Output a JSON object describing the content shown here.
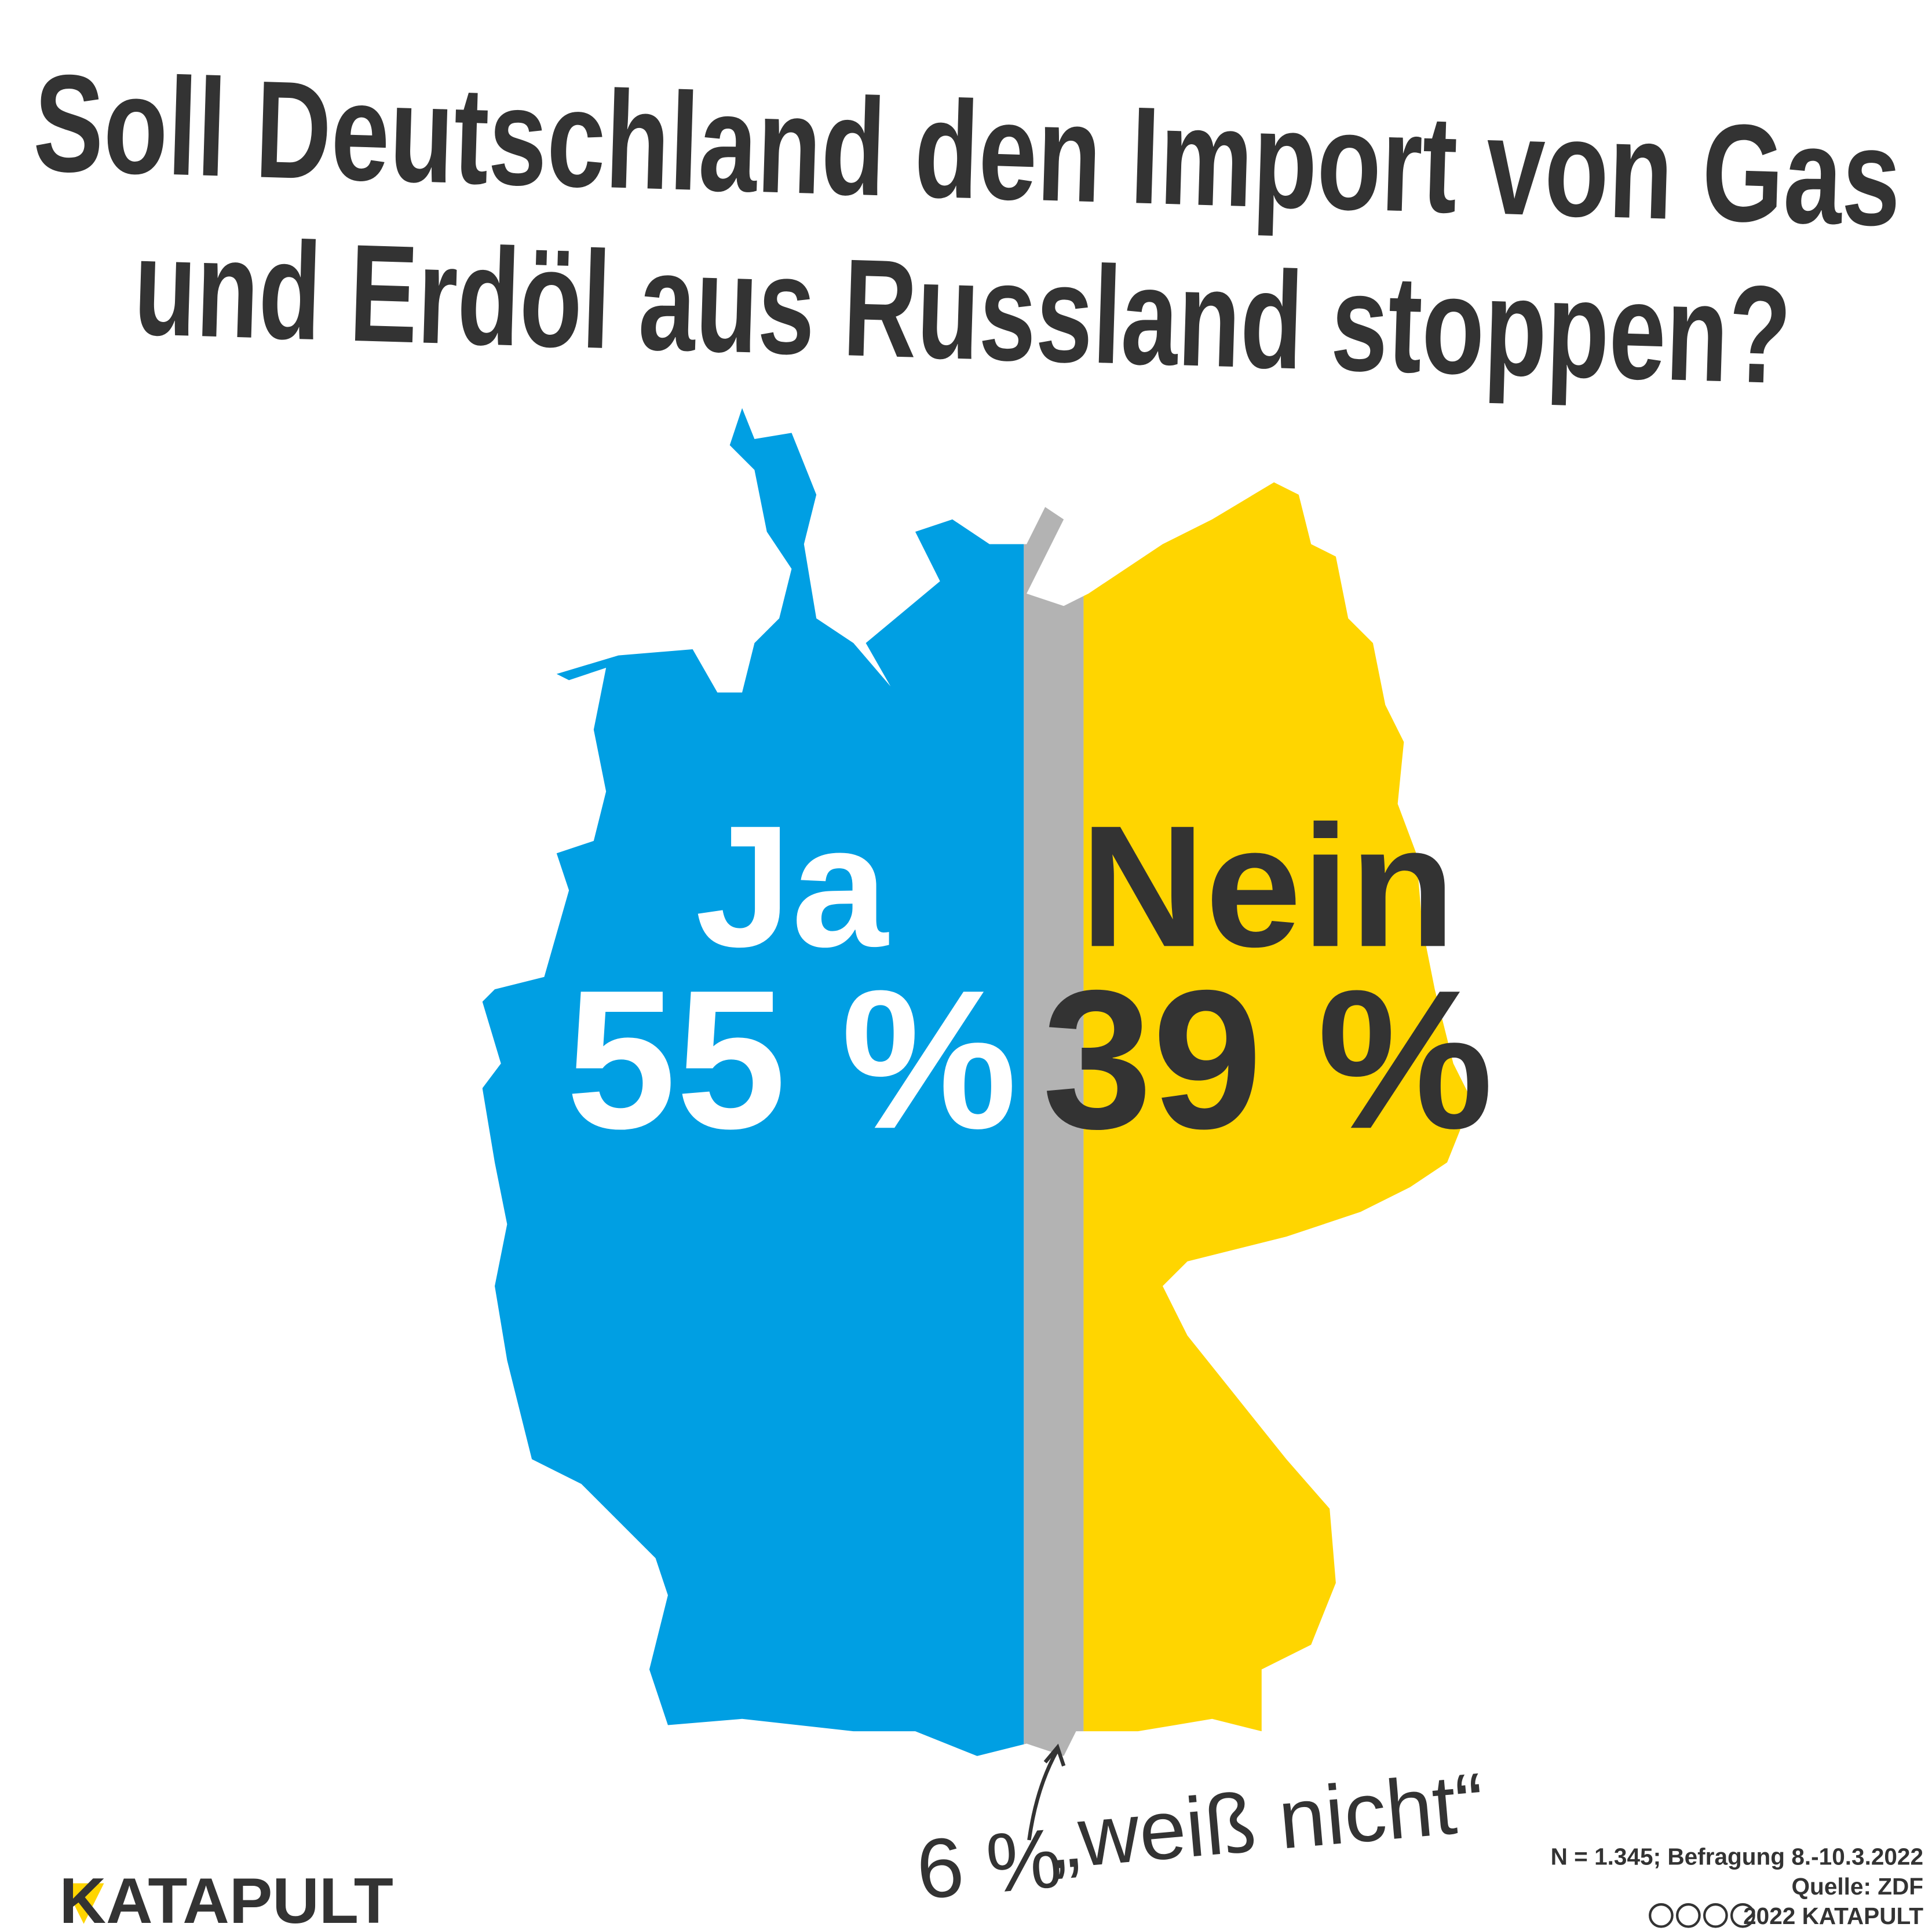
{
  "chart_data": {
    "type": "splitmap",
    "title": [
      "Soll Deutschland den Import von Gas",
      "und Erdöl aus Russland stoppen?"
    ],
    "categories": [
      "Ja",
      "„weiß nicht“",
      "Nein"
    ],
    "values": [
      55,
      6,
      39
    ],
    "value_labels": [
      "55 %",
      "6 %",
      "39 %"
    ],
    "colors": [
      "#009fe3",
      "#b3b3b3",
      "#ffd500"
    ],
    "note": "N = 1.345;  Befragung 8.-10.3.2022",
    "source": "Quelle: ZDF",
    "copyright": "2022 KATAPULT",
    "logo": "KATAPULT"
  }
}
